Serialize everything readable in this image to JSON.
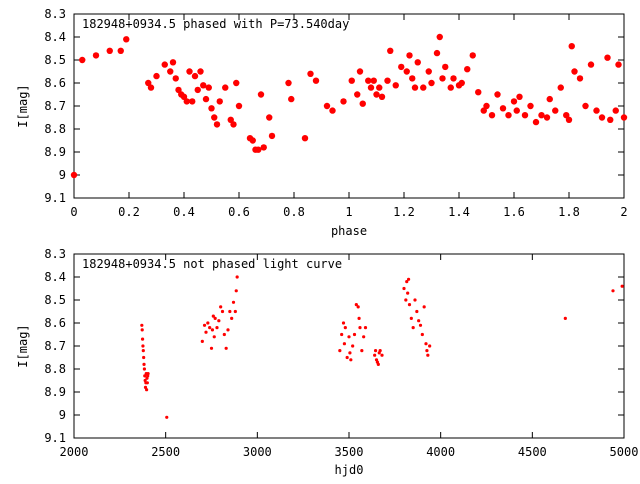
{
  "chart_data": [
    {
      "type": "scatter",
      "title": "182948+0934.5 phased with P=73.540day",
      "xlabel": "phase",
      "ylabel": "I[mag]",
      "xlim": [
        0,
        2
      ],
      "ylim": [
        8.3,
        9.1
      ],
      "y_inverted": true,
      "x_ticks": [
        0,
        0.2,
        0.4,
        0.6,
        0.8,
        1,
        1.2,
        1.4,
        1.6,
        1.8,
        2
      ],
      "y_ticks": [
        8.3,
        8.4,
        8.5,
        8.6,
        8.7,
        8.8,
        8.9,
        9,
        9.1
      ],
      "marker_color": "#ff0000",
      "marker": "filled-circle",
      "grid": false,
      "x": [
        0.0,
        0.03,
        0.08,
        0.13,
        0.17,
        0.19,
        0.27,
        0.28,
        0.3,
        0.33,
        0.35,
        0.36,
        0.37,
        0.38,
        0.39,
        0.4,
        0.41,
        0.42,
        0.43,
        0.44,
        0.45,
        0.46,
        0.47,
        0.48,
        0.49,
        0.5,
        0.51,
        0.52,
        0.53,
        0.55,
        0.57,
        0.58,
        0.59,
        0.6,
        0.64,
        0.65,
        0.66,
        0.67,
        0.68,
        0.69,
        0.71,
        0.72,
        0.78,
        0.79,
        0.84,
        0.86,
        0.88,
        0.92,
        0.94,
        0.98,
        1.01,
        1.03,
        1.04,
        1.05,
        1.07,
        1.08,
        1.09,
        1.1,
        1.11,
        1.12,
        1.14,
        1.15,
        1.17,
        1.19,
        1.21,
        1.22,
        1.23,
        1.24,
        1.25,
        1.27,
        1.29,
        1.3,
        1.32,
        1.33,
        1.34,
        1.35,
        1.37,
        1.38,
        1.4,
        1.41,
        1.43,
        1.45,
        1.47,
        1.49,
        1.5,
        1.52,
        1.54,
        1.56,
        1.58,
        1.6,
        1.61,
        1.62,
        1.64,
        1.66,
        1.68,
        1.7,
        1.72,
        1.73,
        1.75,
        1.77,
        1.79,
        1.8,
        1.81,
        1.82,
        1.84,
        1.86,
        1.88,
        1.9,
        1.92,
        1.94,
        1.95,
        1.97,
        1.98,
        2.0
      ],
      "y": [
        9.0,
        8.5,
        8.48,
        8.46,
        8.46,
        8.41,
        8.6,
        8.62,
        8.57,
        8.52,
        8.55,
        8.51,
        8.58,
        8.63,
        8.65,
        8.66,
        8.68,
        8.55,
        8.68,
        8.57,
        8.63,
        8.55,
        8.61,
        8.67,
        8.62,
        8.71,
        8.75,
        8.78,
        8.68,
        8.62,
        8.76,
        8.78,
        8.6,
        8.7,
        8.84,
        8.85,
        8.89,
        8.89,
        8.65,
        8.88,
        8.75,
        8.83,
        8.6,
        8.67,
        8.84,
        8.56,
        8.59,
        8.7,
        8.72,
        8.68,
        8.59,
        8.65,
        8.55,
        8.69,
        8.59,
        8.62,
        8.59,
        8.65,
        8.62,
        8.66,
        8.59,
        8.46,
        8.61,
        8.53,
        8.55,
        8.48,
        8.58,
        8.62,
        8.51,
        8.62,
        8.55,
        8.6,
        8.47,
        8.4,
        8.58,
        8.53,
        8.62,
        8.58,
        8.61,
        8.6,
        8.54,
        8.48,
        8.64,
        8.72,
        8.7,
        8.74,
        8.65,
        8.71,
        8.74,
        8.68,
        8.72,
        8.66,
        8.74,
        8.7,
        8.77,
        8.74,
        8.75,
        8.67,
        8.72,
        8.62,
        8.74,
        8.76,
        8.44,
        8.55,
        8.58,
        8.7,
        8.52,
        8.72,
        8.75,
        8.49,
        8.76,
        8.72,
        8.52,
        8.75
      ]
    },
    {
      "type": "scatter",
      "title": "182948+0934.5 not phased light curve",
      "xlabel": "hjd0",
      "ylabel": "I[mag]",
      "xlim": [
        2000,
        5000
      ],
      "ylim": [
        8.3,
        9.1
      ],
      "y_inverted": true,
      "x_ticks": [
        2000,
        2500,
        3000,
        3500,
        4000,
        4500,
        5000
      ],
      "y_ticks": [
        8.3,
        8.4,
        8.5,
        8.6,
        8.7,
        8.8,
        8.9,
        9,
        9.1
      ],
      "marker_color": "#ff0000",
      "marker": "small-dot",
      "grid": false,
      "x": [
        2370,
        2372,
        2374,
        2376,
        2378,
        2380,
        2382,
        2384,
        2386,
        2388,
        2390,
        2392,
        2394,
        2396,
        2398,
        2400,
        2402,
        2404,
        2506,
        2700,
        2712,
        2720,
        2730,
        2740,
        2750,
        2755,
        2760,
        2765,
        2770,
        2780,
        2790,
        2800,
        2810,
        2820,
        2830,
        2840,
        2850,
        2860,
        2870,
        2880,
        2885,
        2890,
        3450,
        3460,
        3470,
        3475,
        3480,
        3490,
        3500,
        3505,
        3510,
        3520,
        3530,
        3540,
        3550,
        3555,
        3560,
        3570,
        3580,
        3590,
        3640,
        3645,
        3650,
        3655,
        3660,
        3665,
        3670,
        3680,
        3800,
        3810,
        3815,
        3820,
        3825,
        3830,
        3840,
        3850,
        3860,
        3870,
        3880,
        3890,
        3900,
        3910,
        3920,
        3925,
        3930,
        3940,
        4680,
        4940,
        4990
      ],
      "y": [
        8.61,
        8.63,
        8.67,
        8.7,
        8.72,
        8.75,
        8.78,
        8.8,
        8.83,
        8.85,
        8.88,
        8.86,
        8.82,
        8.89,
        8.84,
        8.86,
        8.83,
        8.82,
        9.01,
        8.68,
        8.61,
        8.64,
        8.6,
        8.62,
        8.71,
        8.63,
        8.57,
        8.66,
        8.58,
        8.62,
        8.59,
        8.53,
        8.55,
        8.65,
        8.71,
        8.63,
        8.55,
        8.58,
        8.51,
        8.55,
        8.46,
        8.4,
        8.72,
        8.65,
        8.6,
        8.69,
        8.62,
        8.75,
        8.66,
        8.73,
        8.76,
        8.7,
        8.65,
        8.52,
        8.53,
        8.58,
        8.62,
        8.72,
        8.66,
        8.62,
        8.74,
        8.72,
        8.76,
        8.77,
        8.78,
        8.73,
        8.72,
        8.74,
        8.45,
        8.5,
        8.42,
        8.47,
        8.41,
        8.52,
        8.58,
        8.62,
        8.5,
        8.55,
        8.59,
        8.61,
        8.65,
        8.53,
        8.69,
        8.72,
        8.74,
        8.7,
        8.58,
        8.46,
        8.44
      ]
    }
  ]
}
